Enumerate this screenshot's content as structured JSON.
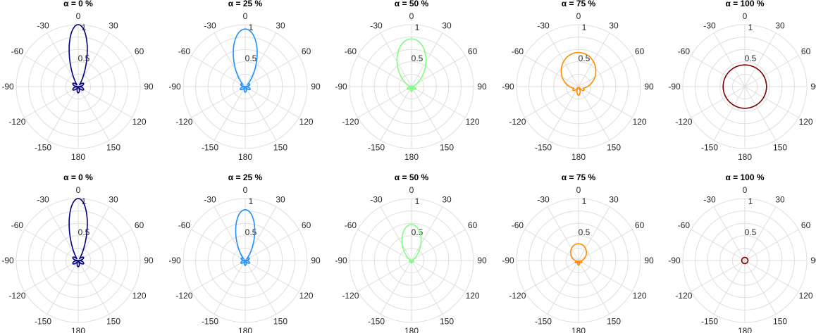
{
  "figure": {
    "rlim": [
      0,
      1
    ],
    "radial_ticks": [
      "0.5",
      "1"
    ],
    "angle_ticks": [
      "0",
      "30",
      "60",
      "90",
      "120",
      "150",
      "180",
      "-150",
      "-120",
      "-90",
      "-60",
      "-30"
    ]
  },
  "chart_data": [
    {
      "type": "polar",
      "title": "α = 0 %",
      "row": 0,
      "col": 0,
      "color": "#00007f",
      "series": [
        {
          "r_max": 1.0,
          "beam_width_deg": 14,
          "back_lobe": 0.1
        }
      ]
    },
    {
      "type": "polar",
      "title": "α = 25 %",
      "row": 0,
      "col": 1,
      "color": "#1e90ff",
      "series": [
        {
          "r_max": 0.93,
          "beam_width_deg": 20,
          "back_lobe": 0.09
        }
      ]
    },
    {
      "type": "polar",
      "title": "α = 50 %",
      "row": 0,
      "col": 2,
      "color": "#7fff7f",
      "series": [
        {
          "r_max": 0.77,
          "beam_width_deg": 30,
          "back_lobe": 0.08
        }
      ]
    },
    {
      "type": "polar",
      "title": "α = 75 %",
      "row": 0,
      "col": 3,
      "color": "#ff8c00",
      "series": [
        {
          "r_max": 0.55,
          "beam_width_deg": 55,
          "back_lobe": 0.15
        }
      ]
    },
    {
      "type": "polar",
      "title": "α = 100 %",
      "row": 0,
      "col": 4,
      "color": "#7f0000",
      "series": [
        {
          "r_max": 0.35,
          "beam_width_deg": 360,
          "back_lobe": 0.35
        }
      ]
    },
    {
      "type": "polar",
      "title": "α = 0 %",
      "row": 1,
      "col": 0,
      "color": "#00007f",
      "series": [
        {
          "r_max": 1.0,
          "beam_width_deg": 14,
          "back_lobe": 0.1
        }
      ]
    },
    {
      "type": "polar",
      "title": "α = 25 %",
      "row": 1,
      "col": 1,
      "color": "#1e90ff",
      "series": [
        {
          "r_max": 0.82,
          "beam_width_deg": 18,
          "back_lobe": 0.08
        }
      ]
    },
    {
      "type": "polar",
      "title": "α = 50 %",
      "row": 1,
      "col": 2,
      "color": "#7fff7f",
      "series": [
        {
          "r_max": 0.58,
          "beam_width_deg": 26,
          "back_lobe": 0.04
        }
      ]
    },
    {
      "type": "polar",
      "title": "α = 75 %",
      "row": 1,
      "col": 3,
      "color": "#ff8c00",
      "series": [
        {
          "r_max": 0.27,
          "beam_width_deg": 50,
          "back_lobe": 0.08
        }
      ]
    },
    {
      "type": "polar",
      "title": "α = 100 %",
      "row": 1,
      "col": 4,
      "color": "#7f0000",
      "series": [
        {
          "r_max": 0.05,
          "beam_width_deg": 360,
          "back_lobe": 0.05
        }
      ]
    }
  ]
}
